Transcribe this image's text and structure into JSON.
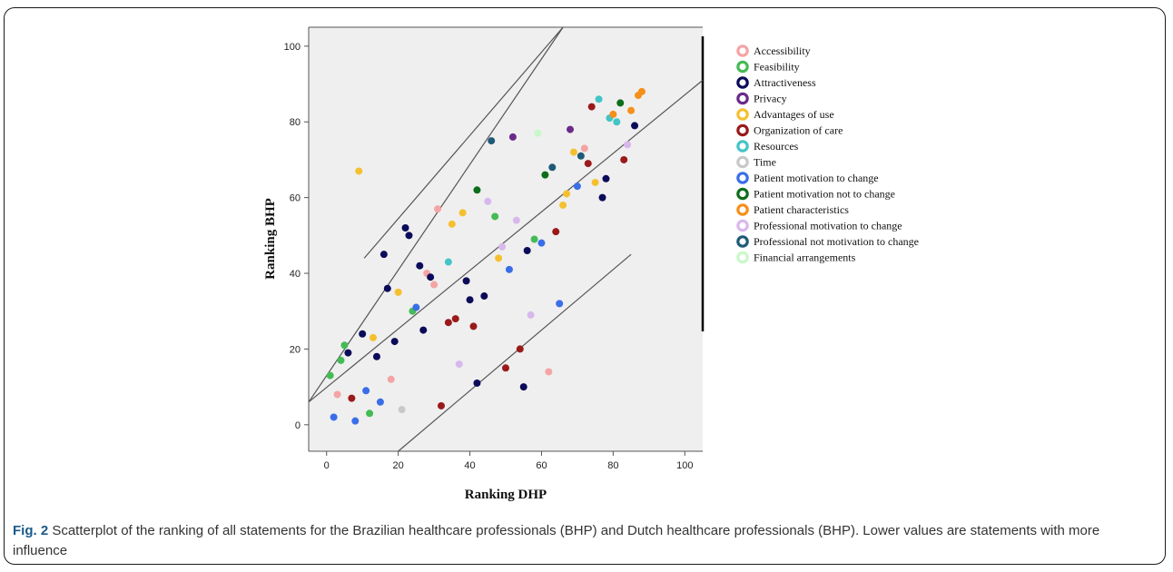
{
  "chart_data": {
    "type": "scatter",
    "xlabel": "Ranking DHP",
    "ylabel": "Ranking BHP",
    "xlim": [
      -5,
      105
    ],
    "ylim": [
      -7,
      105
    ],
    "xticks": [
      "0",
      "20",
      "40",
      "60",
      "80",
      "100"
    ],
    "yticks": [
      "0",
      "20",
      "40",
      "60",
      "80",
      "100"
    ],
    "reference_lines": [
      {
        "x": [
          -5,
          66
        ],
        "y": [
          6,
          105
        ]
      },
      {
        "x": [
          -5,
          105
        ],
        "y": [
          6,
          91
        ]
      },
      {
        "x": [
          20,
          85
        ],
        "y": [
          -7,
          45
        ]
      },
      {
        "x": [
          10.5,
          66
        ],
        "y": [
          44,
          105
        ]
      }
    ],
    "series": [
      {
        "name": "Accessibility",
        "color": "#f4a4a4",
        "points": [
          [
            3,
            8
          ],
          [
            18,
            12
          ],
          [
            31,
            57
          ],
          [
            28,
            40
          ],
          [
            30,
            37
          ],
          [
            62,
            14
          ],
          [
            72,
            73
          ]
        ]
      },
      {
        "name": "Feasibility",
        "color": "#44bb55",
        "points": [
          [
            1,
            13
          ],
          [
            4,
            17
          ],
          [
            5,
            21
          ],
          [
            12,
            3
          ],
          [
            24,
            30
          ],
          [
            47,
            55
          ],
          [
            58,
            49
          ]
        ]
      },
      {
        "name": "Attractiveness",
        "color": "#0b0b5a",
        "points": [
          [
            6,
            19
          ],
          [
            10,
            24
          ],
          [
            14,
            18
          ],
          [
            16,
            45
          ],
          [
            17,
            36
          ],
          [
            19,
            22
          ],
          [
            22,
            52
          ],
          [
            23,
            50
          ],
          [
            26,
            42
          ],
          [
            27,
            25
          ],
          [
            29,
            39
          ],
          [
            39,
            38
          ],
          [
            40,
            33
          ],
          [
            42,
            11
          ],
          [
            44,
            34
          ],
          [
            55,
            10
          ],
          [
            56,
            46
          ],
          [
            77,
            60
          ],
          [
            78,
            65
          ],
          [
            86,
            79
          ]
        ]
      },
      {
        "name": "Privacy",
        "color": "#6a2a8a",
        "points": [
          [
            52,
            76
          ],
          [
            68,
            78
          ]
        ]
      },
      {
        "name": "Advantages of use",
        "color": "#f5c030",
        "points": [
          [
            9,
            67
          ],
          [
            13,
            23
          ],
          [
            20,
            35
          ],
          [
            35,
            53
          ],
          [
            38,
            56
          ],
          [
            48,
            44
          ],
          [
            66,
            58
          ],
          [
            67,
            61
          ],
          [
            69,
            72
          ],
          [
            75,
            64
          ]
        ]
      },
      {
        "name": "Organization of care",
        "color": "#9a1a1a",
        "points": [
          [
            7,
            7
          ],
          [
            32,
            5
          ],
          [
            34,
            27
          ],
          [
            36,
            28
          ],
          [
            41,
            26
          ],
          [
            50,
            15
          ],
          [
            54,
            20
          ],
          [
            64,
            51
          ],
          [
            73,
            69
          ],
          [
            74,
            84
          ],
          [
            83,
            70
          ]
        ]
      },
      {
        "name": "Resources",
        "color": "#44c4c8",
        "points": [
          [
            34,
            43
          ],
          [
            76,
            86
          ],
          [
            79,
            81
          ],
          [
            81,
            80
          ]
        ]
      },
      {
        "name": "Time",
        "color": "#c8c8c8",
        "points": [
          [
            21,
            4
          ]
        ]
      },
      {
        "name": "Patient motivation to change",
        "color": "#3a6ee8",
        "points": [
          [
            2,
            2
          ],
          [
            8,
            1
          ],
          [
            11,
            9
          ],
          [
            15,
            6
          ],
          [
            25,
            31
          ],
          [
            51,
            41
          ],
          [
            60,
            48
          ],
          [
            65,
            32
          ],
          [
            70,
            63
          ]
        ]
      },
      {
        "name": "Patient motivation not to change",
        "color": "#0e6e1a",
        "points": [
          [
            42,
            62
          ],
          [
            61,
            66
          ],
          [
            82,
            85
          ]
        ]
      },
      {
        "name": "Patient characteristics",
        "color": "#f5901a",
        "points": [
          [
            80,
            82
          ],
          [
            85,
            83
          ],
          [
            87,
            87
          ],
          [
            88,
            88
          ]
        ]
      },
      {
        "name": "Professional motivation to change",
        "color": "#d8b8ec",
        "points": [
          [
            37,
            16
          ],
          [
            45,
            59
          ],
          [
            49,
            47
          ],
          [
            53,
            54
          ],
          [
            57,
            29
          ],
          [
            84,
            74
          ]
        ]
      },
      {
        "name": "Professional not motivation to change",
        "color": "#1e5a78",
        "points": [
          [
            46,
            75
          ],
          [
            63,
            68
          ],
          [
            71,
            71
          ]
        ]
      },
      {
        "name": "Financial arrangements",
        "color": "#c8f8c8",
        "points": [
          [
            59,
            77
          ]
        ]
      }
    ]
  },
  "caption": {
    "label": "Fig. 2",
    "text": " Scatterplot of the ranking of all statements for the Brazilian healthcare professionals (BHP) and Dutch healthcare professionals (BHP). Lower values are statements with more influence"
  }
}
